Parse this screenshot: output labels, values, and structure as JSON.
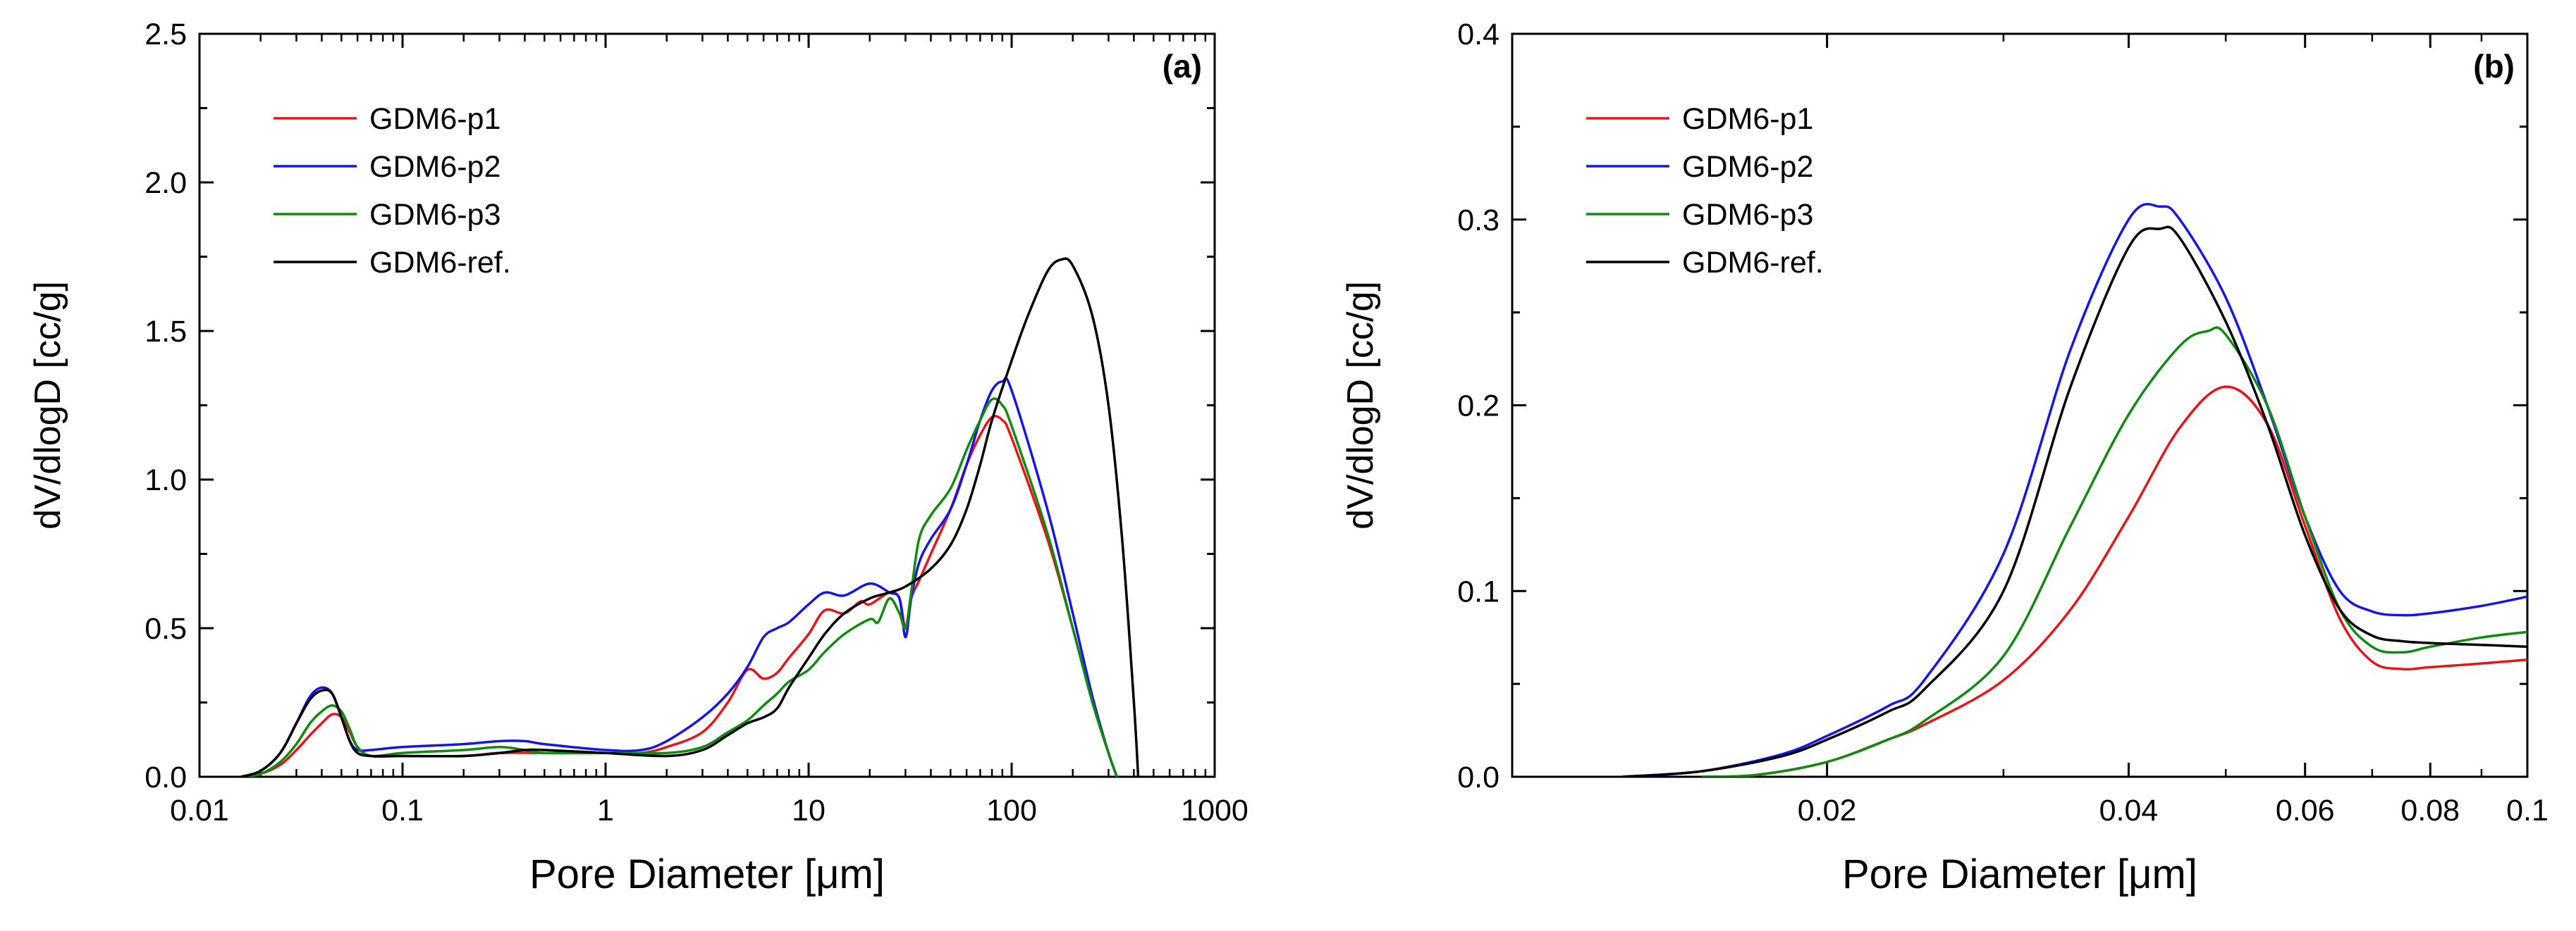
{
  "chart_data": [
    {
      "type": "line",
      "panel_label": "(a)",
      "xlabel": "Pore Diameter [μm]",
      "ylabel": "dV/dlogD [cc/g]",
      "xscale": "log",
      "xlim": [
        0.01,
        1000
      ],
      "ylim": [
        0,
        2.5
      ],
      "xticks": [
        0.01,
        0.1,
        1,
        10,
        100,
        1000
      ],
      "xtick_labels": [
        "0.01",
        "0.1",
        "1",
        "10",
        "100",
        "1000"
      ],
      "yticks": [
        0,
        0.5,
        1.0,
        1.5,
        2.0,
        2.5
      ],
      "ytick_labels": [
        "0.0",
        "0.5",
        "1.0",
        "1.5",
        "2.0",
        "2.5"
      ],
      "legend": "top-left",
      "series": [
        {
          "name": "GDM6-p1",
          "color": "#e8141b",
          "points": [
            [
              0.016,
              0
            ],
            [
              0.02,
              0.01
            ],
            [
              0.025,
              0.04
            ],
            [
              0.03,
              0.09
            ],
            [
              0.035,
              0.14
            ],
            [
              0.04,
              0.18
            ],
            [
              0.045,
              0.21
            ],
            [
              0.05,
              0.2
            ],
            [
              0.055,
              0.15
            ],
            [
              0.06,
              0.1
            ],
            [
              0.07,
              0.07
            ],
            [
              0.1,
              0.07
            ],
            [
              0.2,
              0.07
            ],
            [
              0.3,
              0.08
            ],
            [
              0.5,
              0.08
            ],
            [
              1,
              0.08
            ],
            [
              1.5,
              0.08
            ],
            [
              2,
              0.1
            ],
            [
              3,
              0.15
            ],
            [
              4,
              0.25
            ],
            [
              5,
              0.36
            ],
            [
              6,
              0.33
            ],
            [
              7,
              0.35
            ],
            [
              8,
              0.4
            ],
            [
              10,
              0.48
            ],
            [
              12,
              0.56
            ],
            [
              15,
              0.55
            ],
            [
              18,
              0.59
            ],
            [
              20,
              0.58
            ],
            [
              25,
              0.62
            ],
            [
              28,
              0.6
            ],
            [
              30,
              0.5
            ],
            [
              32,
              0.6
            ],
            [
              35,
              0.66
            ],
            [
              40,
              0.75
            ],
            [
              50,
              0.9
            ],
            [
              60,
              1.05
            ],
            [
              70,
              1.15
            ],
            [
              80,
              1.21
            ],
            [
              90,
              1.2
            ],
            [
              100,
              1.14
            ],
            [
              150,
              0.8
            ],
            [
              200,
              0.5
            ],
            [
              250,
              0.25
            ],
            [
              300,
              0.08
            ],
            [
              330,
              0
            ]
          ]
        },
        {
          "name": "GDM6-p2",
          "color": "#1515e8",
          "points": [
            [
              0.016,
              0
            ],
            [
              0.02,
              0.02
            ],
            [
              0.025,
              0.08
            ],
            [
              0.03,
              0.18
            ],
            [
              0.035,
              0.27
            ],
            [
              0.04,
              0.3
            ],
            [
              0.045,
              0.28
            ],
            [
              0.05,
              0.2
            ],
            [
              0.055,
              0.12
            ],
            [
              0.06,
              0.09
            ],
            [
              0.07,
              0.09
            ],
            [
              0.1,
              0.1
            ],
            [
              0.2,
              0.11
            ],
            [
              0.3,
              0.12
            ],
            [
              0.4,
              0.12
            ],
            [
              0.5,
              0.11
            ],
            [
              1,
              0.09
            ],
            [
              1.5,
              0.09
            ],
            [
              2,
              0.12
            ],
            [
              3,
              0.2
            ],
            [
              4,
              0.28
            ],
            [
              5,
              0.37
            ],
            [
              6,
              0.47
            ],
            [
              7,
              0.5
            ],
            [
              8,
              0.52
            ],
            [
              10,
              0.58
            ],
            [
              12,
              0.62
            ],
            [
              15,
              0.61
            ],
            [
              20,
              0.65
            ],
            [
              25,
              0.62
            ],
            [
              28,
              0.6
            ],
            [
              30,
              0.47
            ],
            [
              32,
              0.6
            ],
            [
              35,
              0.72
            ],
            [
              40,
              0.8
            ],
            [
              50,
              0.9
            ],
            [
              60,
              1.05
            ],
            [
              70,
              1.2
            ],
            [
              80,
              1.3
            ],
            [
              90,
              1.33
            ],
            [
              100,
              1.3
            ],
            [
              150,
              0.9
            ],
            [
              200,
              0.55
            ],
            [
              250,
              0.27
            ],
            [
              300,
              0.08
            ],
            [
              330,
              0
            ]
          ]
        },
        {
          "name": "GDM6-p3",
          "color": "#108a10",
          "points": [
            [
              0.016,
              0
            ],
            [
              0.02,
              0.01
            ],
            [
              0.025,
              0.05
            ],
            [
              0.03,
              0.11
            ],
            [
              0.035,
              0.18
            ],
            [
              0.04,
              0.22
            ],
            [
              0.045,
              0.24
            ],
            [
              0.05,
              0.22
            ],
            [
              0.055,
              0.16
            ],
            [
              0.06,
              0.1
            ],
            [
              0.07,
              0.07
            ],
            [
              0.1,
              0.08
            ],
            [
              0.2,
              0.09
            ],
            [
              0.3,
              0.1
            ],
            [
              0.4,
              0.09
            ],
            [
              0.5,
              0.08
            ],
            [
              1,
              0.08
            ],
            [
              2,
              0.08
            ],
            [
              3,
              0.1
            ],
            [
              4,
              0.15
            ],
            [
              5,
              0.19
            ],
            [
              6,
              0.24
            ],
            [
              7,
              0.28
            ],
            [
              8,
              0.32
            ],
            [
              10,
              0.36
            ],
            [
              12,
              0.42
            ],
            [
              15,
              0.48
            ],
            [
              20,
              0.53
            ],
            [
              22,
              0.52
            ],
            [
              25,
              0.6
            ],
            [
              28,
              0.55
            ],
            [
              30,
              0.5
            ],
            [
              32,
              0.62
            ],
            [
              35,
              0.8
            ],
            [
              40,
              0.88
            ],
            [
              50,
              0.97
            ],
            [
              60,
              1.1
            ],
            [
              70,
              1.2
            ],
            [
              80,
              1.27
            ],
            [
              90,
              1.25
            ],
            [
              100,
              1.18
            ],
            [
              150,
              0.82
            ],
            [
              200,
              0.5
            ],
            [
              250,
              0.25
            ],
            [
              300,
              0.08
            ],
            [
              330,
              0
            ]
          ]
        },
        {
          "name": "GDM6-ref.",
          "color": "#000000",
          "points": [
            [
              0.016,
              0
            ],
            [
              0.02,
              0.02
            ],
            [
              0.025,
              0.08
            ],
            [
              0.03,
              0.18
            ],
            [
              0.035,
              0.26
            ],
            [
              0.04,
              0.29
            ],
            [
              0.045,
              0.28
            ],
            [
              0.05,
              0.2
            ],
            [
              0.055,
              0.12
            ],
            [
              0.06,
              0.08
            ],
            [
              0.07,
              0.07
            ],
            [
              0.1,
              0.07
            ],
            [
              0.2,
              0.07
            ],
            [
              0.3,
              0.08
            ],
            [
              0.4,
              0.09
            ],
            [
              0.5,
              0.09
            ],
            [
              1,
              0.08
            ],
            [
              2,
              0.07
            ],
            [
              3,
              0.09
            ],
            [
              4,
              0.14
            ],
            [
              5,
              0.18
            ],
            [
              6,
              0.2
            ],
            [
              7,
              0.23
            ],
            [
              8,
              0.3
            ],
            [
              10,
              0.4
            ],
            [
              12,
              0.48
            ],
            [
              15,
              0.55
            ],
            [
              20,
              0.6
            ],
            [
              25,
              0.62
            ],
            [
              30,
              0.64
            ],
            [
              40,
              0.7
            ],
            [
              50,
              0.78
            ],
            [
              60,
              0.9
            ],
            [
              70,
              1.05
            ],
            [
              80,
              1.2
            ],
            [
              100,
              1.4
            ],
            [
              120,
              1.55
            ],
            [
              150,
              1.7
            ],
            [
              175,
              1.74
            ],
            [
              200,
              1.72
            ],
            [
              250,
              1.55
            ],
            [
              300,
              1.25
            ],
            [
              350,
              0.8
            ],
            [
              400,
              0.25
            ],
            [
              420,
              0
            ]
          ]
        }
      ]
    },
    {
      "type": "line",
      "panel_label": "(b)",
      "xlabel": "Pore Diameter [μm]",
      "ylabel": "dV/dlogD [cc/g]",
      "xscale": "log",
      "xlim": [
        0.0097,
        0.1
      ],
      "ylim": [
        0,
        0.4
      ],
      "xticks": [
        0.02,
        0.04,
        0.06,
        0.08,
        0.1
      ],
      "xtick_labels": [
        "0.02",
        "0.04",
        "0.06",
        "0.08",
        "0.1"
      ],
      "yticks": [
        0,
        0.1,
        0.2,
        0.3,
        0.4
      ],
      "ytick_labels": [
        "0.0",
        "0.1",
        "0.2",
        "0.3",
        "0.4"
      ],
      "legend": "top-left",
      "series": [
        {
          "name": "GDM6-p1",
          "color": "#e8141b",
          "points": [
            [
              0.015,
              0
            ],
            [
              0.017,
              0.001
            ],
            [
              0.02,
              0.008
            ],
            [
              0.023,
              0.02
            ],
            [
              0.025,
              0.028
            ],
            [
              0.03,
              0.052
            ],
            [
              0.035,
              0.09
            ],
            [
              0.04,
              0.14
            ],
            [
              0.045,
              0.188
            ],
            [
              0.05,
              0.21
            ],
            [
              0.055,
              0.19
            ],
            [
              0.06,
              0.135
            ],
            [
              0.065,
              0.085
            ],
            [
              0.07,
              0.062
            ],
            [
              0.075,
              0.058
            ],
            [
              0.08,
              0.059
            ],
            [
              0.09,
              0.061
            ],
            [
              0.1,
              0.063
            ]
          ]
        },
        {
          "name": "GDM6-p2",
          "color": "#1515e8",
          "points": [
            [
              0.0125,
              0
            ],
            [
              0.015,
              0.003
            ],
            [
              0.018,
              0.012
            ],
            [
              0.02,
              0.022
            ],
            [
              0.023,
              0.038
            ],
            [
              0.025,
              0.052
            ],
            [
              0.03,
              0.12
            ],
            [
              0.035,
              0.23
            ],
            [
              0.04,
              0.3
            ],
            [
              0.043,
              0.307
            ],
            [
              0.045,
              0.3
            ],
            [
              0.05,
              0.258
            ],
            [
              0.055,
              0.2
            ],
            [
              0.06,
              0.14
            ],
            [
              0.065,
              0.1
            ],
            [
              0.07,
              0.089
            ],
            [
              0.075,
              0.087
            ],
            [
              0.08,
              0.088
            ],
            [
              0.09,
              0.092
            ],
            [
              0.1,
              0.097
            ]
          ]
        },
        {
          "name": "GDM6-p3",
          "color": "#108a10",
          "points": [
            [
              0.015,
              0
            ],
            [
              0.017,
              0.001
            ],
            [
              0.02,
              0.008
            ],
            [
              0.023,
              0.02
            ],
            [
              0.025,
              0.03
            ],
            [
              0.03,
              0.065
            ],
            [
              0.035,
              0.135
            ],
            [
              0.04,
              0.195
            ],
            [
              0.045,
              0.232
            ],
            [
              0.048,
              0.24
            ],
            [
              0.05,
              0.238
            ],
            [
              0.055,
              0.2
            ],
            [
              0.06,
              0.14
            ],
            [
              0.065,
              0.09
            ],
            [
              0.07,
              0.07
            ],
            [
              0.075,
              0.067
            ],
            [
              0.08,
              0.07
            ],
            [
              0.09,
              0.075
            ],
            [
              0.1,
              0.078
            ]
          ]
        },
        {
          "name": "GDM6-ref.",
          "color": "#000000",
          "points": [
            [
              0.0125,
              0
            ],
            [
              0.015,
              0.003
            ],
            [
              0.018,
              0.011
            ],
            [
              0.02,
              0.02
            ],
            [
              0.023,
              0.035
            ],
            [
              0.025,
              0.047
            ],
            [
              0.03,
              0.1
            ],
            [
              0.035,
              0.21
            ],
            [
              0.04,
              0.285
            ],
            [
              0.043,
              0.295
            ],
            [
              0.045,
              0.29
            ],
            [
              0.05,
              0.245
            ],
            [
              0.055,
              0.19
            ],
            [
              0.06,
              0.13
            ],
            [
              0.065,
              0.09
            ],
            [
              0.07,
              0.076
            ],
            [
              0.075,
              0.073
            ],
            [
              0.08,
              0.072
            ],
            [
              0.09,
              0.071
            ],
            [
              0.1,
              0.07
            ]
          ]
        }
      ]
    }
  ]
}
